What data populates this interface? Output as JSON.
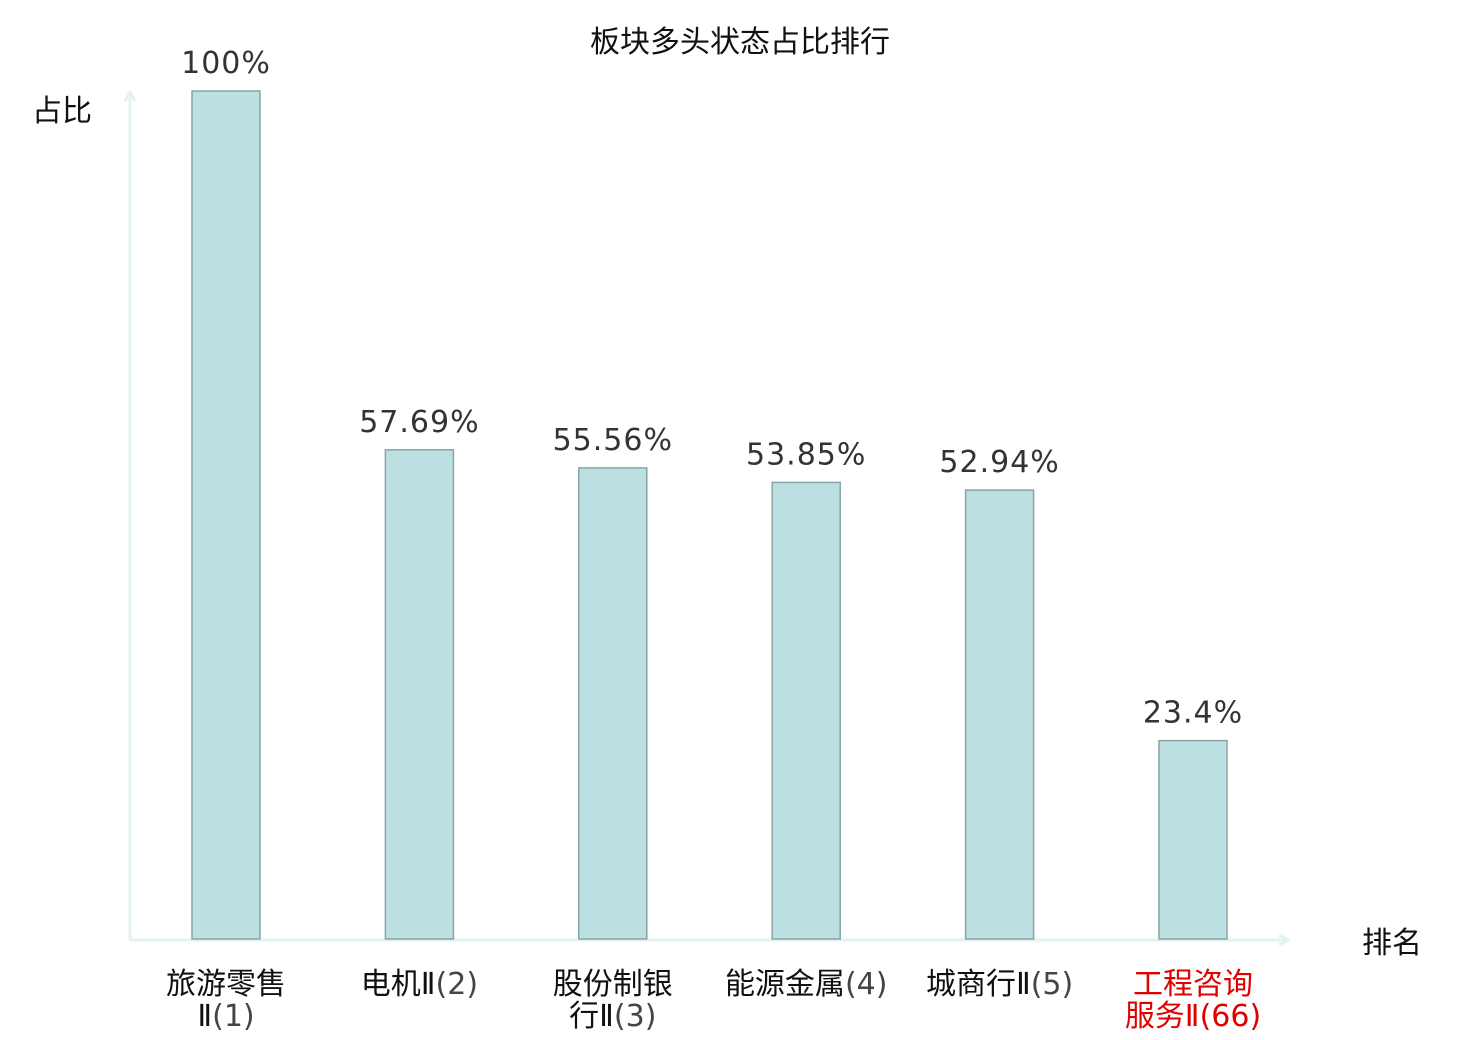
{
  "colors": {
    "bar_fill": "#bce0e2",
    "bar_stroke": "#86a5a8",
    "axis": "#e2f3f1",
    "text": "#111111",
    "value_text": "#333333",
    "highlight": "#e00000"
  },
  "chart_data": {
    "type": "bar",
    "title": "板块多头状态占比排行",
    "xlabel": "排名",
    "ylabel": "占比",
    "ylim": [
      0,
      100
    ],
    "grid": false,
    "categories": [
      {
        "line1": "旅游零售",
        "line2": "Ⅱ(1)",
        "highlight": false
      },
      {
        "line1": "电机Ⅱ(2)",
        "line2": "",
        "highlight": false
      },
      {
        "line1": "股份制银",
        "line2": "行Ⅱ(3)",
        "highlight": false
      },
      {
        "line1": "能源金属(4)",
        "line2": "",
        "highlight": false
      },
      {
        "line1": "城商行Ⅱ(5)",
        "line2": "",
        "highlight": false
      },
      {
        "line1": "工程咨询",
        "line2": "服务Ⅱ(66)",
        "highlight": true
      }
    ],
    "values": [
      100,
      57.69,
      55.56,
      53.85,
      52.94,
      23.4
    ],
    "value_labels": [
      "100%",
      "57.69%",
      "55.56%",
      "53.85%",
      "52.94%",
      "23.4%"
    ]
  }
}
